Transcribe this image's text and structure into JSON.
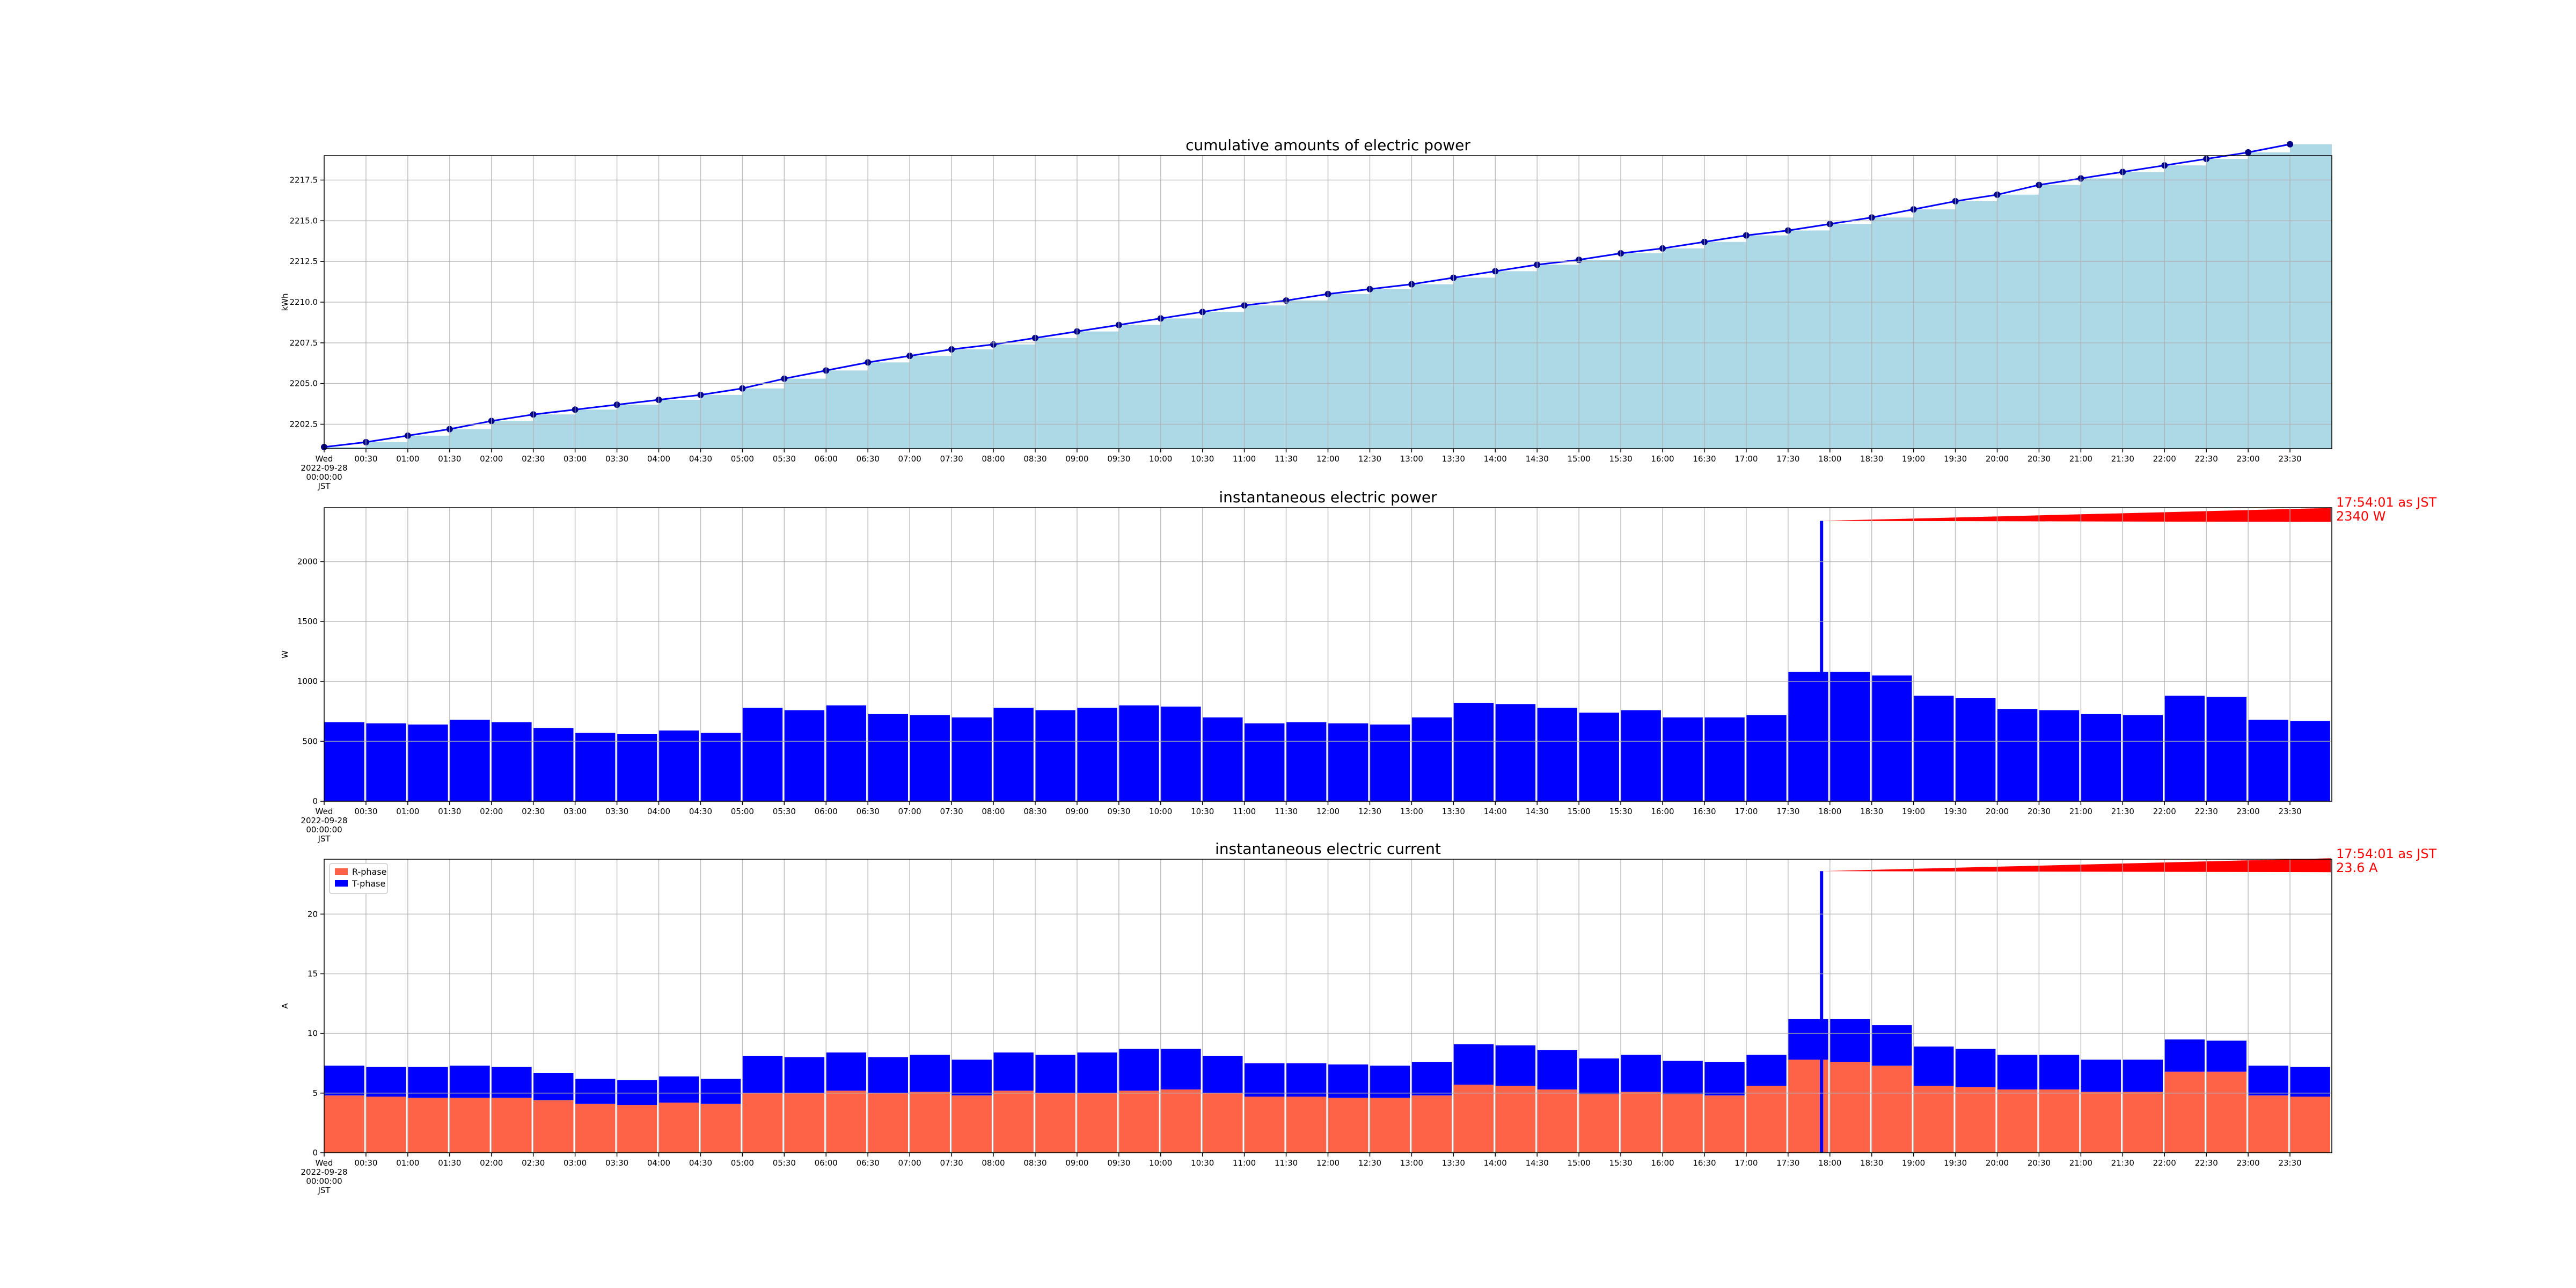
{
  "chart_data": [
    {
      "type": "area",
      "title": "cumulative amounts of electric power",
      "xlabel": "",
      "ylabel": "kWh",
      "start_label": [
        "Wed",
        "2022-09-28",
        "00:00:00",
        "JST"
      ],
      "x_tick_labels": [
        "00:30",
        "01:00",
        "01:30",
        "02:00",
        "02:30",
        "03:00",
        "03:30",
        "04:00",
        "04:30",
        "05:00",
        "05:30",
        "06:00",
        "06:30",
        "07:00",
        "07:30",
        "08:00",
        "08:30",
        "09:00",
        "09:30",
        "10:00",
        "10:30",
        "11:00",
        "11:30",
        "12:00",
        "12:30",
        "13:00",
        "13:30",
        "14:00",
        "14:30",
        "15:00",
        "15:30",
        "16:00",
        "16:30",
        "17:00",
        "17:30",
        "18:00",
        "18:30",
        "19:00",
        "19:30",
        "20:00",
        "20:30",
        "21:00",
        "21:30",
        "22:00",
        "22:30",
        "23:00",
        "23:30"
      ],
      "y_tick_labels": [
        "2202.5",
        "2205.0",
        "2207.5",
        "2210.0",
        "2212.5",
        "2215.0",
        "2217.5"
      ],
      "xlim": [
        "00:00",
        "24:00"
      ],
      "ylim": [
        2201.0,
        2219.0
      ],
      "grid": true,
      "colors": {
        "fill": "#add8e6",
        "line": "#0000ff",
        "marker": "#00008b"
      },
      "series": [
        {
          "x": [
            "00:00",
            "00:30",
            "01:00",
            "01:30",
            "02:00",
            "02:30",
            "03:00",
            "03:30",
            "04:00",
            "04:30",
            "05:00",
            "05:30",
            "06:00",
            "06:30",
            "07:00",
            "07:30",
            "08:00",
            "08:30",
            "09:00",
            "09:30",
            "10:00",
            "10:30",
            "11:00",
            "11:30",
            "12:00",
            "12:30",
            "13:00",
            "13:30",
            "14:00",
            "14:30",
            "15:00",
            "15:30",
            "16:00",
            "16:30",
            "17:00",
            "17:30",
            "18:00",
            "18:30",
            "19:00",
            "19:30",
            "20:00",
            "20:30",
            "21:00",
            "21:30",
            "22:00",
            "22:30",
            "23:00",
            "23:30"
          ],
          "values": [
            2201.1,
            2201.4,
            2201.8,
            2202.2,
            2202.7,
            2203.1,
            2203.4,
            2203.7,
            2204.0,
            2204.3,
            2204.7,
            2205.3,
            2205.8,
            2206.3,
            2206.7,
            2207.1,
            2207.4,
            2207.8,
            2208.2,
            2208.6,
            2209.0,
            2209.4,
            2209.8,
            2210.1,
            2210.5,
            2210.8,
            2211.1,
            2211.5,
            2211.9,
            2212.3,
            2212.6,
            2213.0,
            2213.3,
            2213.7,
            2214.1,
            2214.4,
            2214.8,
            2215.2,
            2215.7,
            2216.2,
            2216.6,
            2217.2,
            2217.6,
            2218.0,
            2218.4,
            2218.8,
            2219.2,
            2219.7
          ]
        }
      ]
    },
    {
      "type": "bar",
      "title": "instantaneous electric power",
      "xlabel": "",
      "ylabel": "W",
      "start_label": [
        "Wed",
        "2022-09-28",
        "00:00:00",
        "JST"
      ],
      "x_tick_labels": [
        "00:30",
        "01:00",
        "01:30",
        "02:00",
        "02:30",
        "03:00",
        "03:30",
        "04:00",
        "04:30",
        "05:00",
        "05:30",
        "06:00",
        "06:30",
        "07:00",
        "07:30",
        "08:00",
        "08:30",
        "09:00",
        "09:30",
        "10:00",
        "10:30",
        "11:00",
        "11:30",
        "12:00",
        "12:30",
        "13:00",
        "13:30",
        "14:00",
        "14:30",
        "15:00",
        "15:30",
        "16:00",
        "16:30",
        "17:00",
        "17:30",
        "18:00",
        "18:30",
        "19:00",
        "19:30",
        "20:00",
        "20:30",
        "21:00",
        "21:30",
        "22:00",
        "22:30",
        "23:00",
        "23:30"
      ],
      "y_tick_labels": [
        "0",
        "500",
        "1000",
        "1500",
        "2000"
      ],
      "xlim": [
        "00:00",
        "24:00"
      ],
      "ylim": [
        0,
        2450
      ],
      "grid": true,
      "colors": {
        "bars": "#0000ff",
        "annotation": "#ff0000"
      },
      "annotation": {
        "line1": "17:54:01 as JST",
        "line2": "2340 W",
        "x": "17:54:01",
        "y": 2340
      },
      "series": [
        {
          "x": [
            "00:00",
            "00:30",
            "01:00",
            "01:30",
            "02:00",
            "02:30",
            "03:00",
            "03:30",
            "04:00",
            "04:30",
            "05:00",
            "05:30",
            "06:00",
            "06:30",
            "07:00",
            "07:30",
            "08:00",
            "08:30",
            "09:00",
            "09:30",
            "10:00",
            "10:30",
            "11:00",
            "11:30",
            "12:00",
            "12:30",
            "13:00",
            "13:30",
            "14:00",
            "14:30",
            "15:00",
            "15:30",
            "16:00",
            "16:30",
            "17:00",
            "17:30",
            "18:00",
            "18:30",
            "19:00",
            "19:30",
            "20:00",
            "20:30",
            "21:00",
            "21:30",
            "22:00",
            "22:30",
            "23:00",
            "23:30"
          ],
          "values": [
            660,
            650,
            640,
            680,
            660,
            610,
            570,
            560,
            590,
            570,
            780,
            760,
            800,
            730,
            720,
            700,
            780,
            760,
            780,
            800,
            790,
            700,
            650,
            660,
            650,
            640,
            700,
            820,
            810,
            780,
            740,
            760,
            700,
            700,
            720,
            1080,
            1080,
            1050,
            880,
            860,
            770,
            760,
            730,
            720,
            880,
            870,
            680,
            670
          ]
        }
      ]
    },
    {
      "type": "bar",
      "title": "instantaneous electric current",
      "xlabel": "",
      "ylabel": "A",
      "start_label": [
        "Wed",
        "2022-09-28",
        "00:00:00",
        "JST"
      ],
      "x_tick_labels": [
        "00:30",
        "01:00",
        "01:30",
        "02:00",
        "02:30",
        "03:00",
        "03:30",
        "04:00",
        "04:30",
        "05:00",
        "05:30",
        "06:00",
        "06:30",
        "07:00",
        "07:30",
        "08:00",
        "08:30",
        "09:00",
        "09:30",
        "10:00",
        "10:30",
        "11:00",
        "11:30",
        "12:00",
        "12:30",
        "13:00",
        "13:30",
        "14:00",
        "14:30",
        "15:00",
        "15:30",
        "16:00",
        "16:30",
        "17:00",
        "17:30",
        "18:00",
        "18:30",
        "19:00",
        "19:30",
        "20:00",
        "20:30",
        "21:00",
        "21:30",
        "22:00",
        "22:30",
        "23:00",
        "23:30"
      ],
      "y_tick_labels": [
        "0",
        "5",
        "10",
        "15",
        "20"
      ],
      "xlim": [
        "00:00",
        "24:00"
      ],
      "ylim": [
        0,
        24.6
      ],
      "grid": true,
      "legend": {
        "position": "top-left",
        "entries": [
          "R-phase",
          "T-phase"
        ]
      },
      "colors": {
        "R-phase": "#ff6347",
        "T-phase": "#0000ff",
        "annotation": "#ff0000"
      },
      "annotation": {
        "line1": "17:54:01 as JST",
        "line2": "23.6 A",
        "x": "17:54:01",
        "y": 23.6
      },
      "series": [
        {
          "name": "R-phase",
          "x": [
            "00:00",
            "00:30",
            "01:00",
            "01:30",
            "02:00",
            "02:30",
            "03:00",
            "03:30",
            "04:00",
            "04:30",
            "05:00",
            "05:30",
            "06:00",
            "06:30",
            "07:00",
            "07:30",
            "08:00",
            "08:30",
            "09:00",
            "09:30",
            "10:00",
            "10:30",
            "11:00",
            "11:30",
            "12:00",
            "12:30",
            "13:00",
            "13:30",
            "14:00",
            "14:30",
            "15:00",
            "15:30",
            "16:00",
            "16:30",
            "17:00",
            "17:30",
            "18:00",
            "18:30",
            "19:00",
            "19:30",
            "20:00",
            "20:30",
            "21:00",
            "21:30",
            "22:00",
            "22:30",
            "23:00",
            "23:30"
          ],
          "values": [
            4.8,
            4.7,
            4.6,
            4.6,
            4.6,
            4.4,
            4.1,
            4.0,
            4.2,
            4.1,
            5.0,
            5.0,
            5.2,
            5.0,
            5.1,
            4.8,
            5.2,
            5.0,
            5.0,
            5.2,
            5.3,
            5.0,
            4.7,
            4.7,
            4.6,
            4.6,
            4.8,
            5.7,
            5.6,
            5.3,
            4.9,
            5.1,
            4.9,
            4.8,
            5.6,
            7.8,
            7.6,
            7.3,
            5.6,
            5.5,
            5.3,
            5.3,
            5.1,
            5.1,
            6.8,
            6.8,
            4.8,
            4.7
          ]
        },
        {
          "name": "T-phase",
          "x": [
            "00:00",
            "00:30",
            "01:00",
            "01:30",
            "02:00",
            "02:30",
            "03:00",
            "03:30",
            "04:00",
            "04:30",
            "05:00",
            "05:30",
            "06:00",
            "06:30",
            "07:00",
            "07:30",
            "08:00",
            "08:30",
            "09:00",
            "09:30",
            "10:00",
            "10:30",
            "11:00",
            "11:30",
            "12:00",
            "12:30",
            "13:00",
            "13:30",
            "14:00",
            "14:30",
            "15:00",
            "15:30",
            "16:00",
            "16:30",
            "17:00",
            "17:30",
            "18:00",
            "18:30",
            "19:00",
            "19:30",
            "20:00",
            "20:30",
            "21:00",
            "21:30",
            "22:00",
            "22:30",
            "23:00",
            "23:30"
          ],
          "values": [
            2.5,
            2.5,
            2.6,
            2.7,
            2.6,
            2.3,
            2.1,
            2.1,
            2.2,
            2.1,
            3.1,
            3.0,
            3.2,
            3.0,
            3.1,
            3.0,
            3.2,
            3.2,
            3.4,
            3.5,
            3.4,
            3.1,
            2.8,
            2.8,
            2.8,
            2.7,
            2.8,
            3.4,
            3.4,
            3.3,
            3.0,
            3.1,
            2.8,
            2.8,
            2.6,
            3.4,
            3.6,
            3.4,
            3.3,
            3.2,
            2.9,
            2.9,
            2.7,
            2.7,
            2.7,
            2.6,
            2.5,
            2.5
          ]
        }
      ]
    }
  ]
}
